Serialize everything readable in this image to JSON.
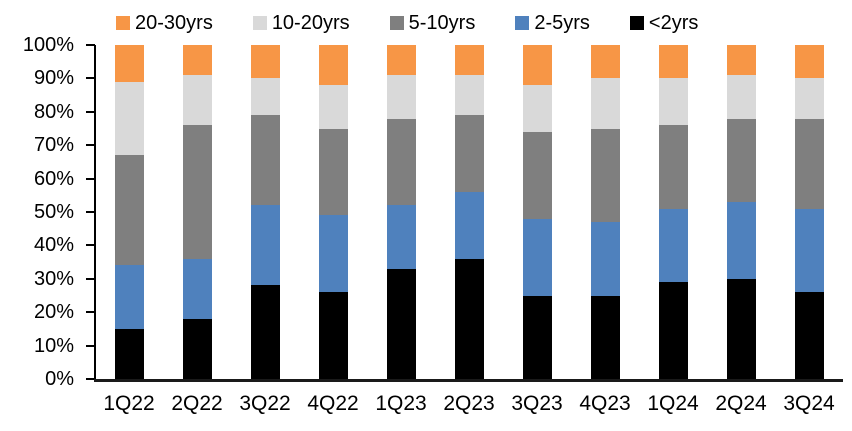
{
  "chart_data": {
    "type": "bar",
    "variant": "stacked-100",
    "title": "",
    "xlabel": "",
    "ylabel": "",
    "unit": "%",
    "grid": false,
    "legend_position": "top",
    "ylim": [
      0,
      100
    ],
    "ytick_step": 10,
    "ytick_labels": [
      "0%",
      "10%",
      "20%",
      "30%",
      "40%",
      "50%",
      "60%",
      "70%",
      "80%",
      "90%",
      "100%"
    ],
    "categories": [
      "1Q22",
      "2Q22",
      "3Q22",
      "4Q22",
      "1Q23",
      "2Q23",
      "3Q23",
      "4Q23",
      "1Q24",
      "2Q24",
      "3Q24"
    ],
    "series": [
      {
        "name": "<2yrs",
        "color": "#000000",
        "values": [
          15,
          18,
          28,
          26,
          33,
          36,
          25,
          25,
          29,
          30,
          26
        ]
      },
      {
        "name": "2-5yrs",
        "color": "#4F81BD",
        "values": [
          19,
          18,
          24,
          23,
          19,
          20,
          23,
          22,
          22,
          23,
          25
        ]
      },
      {
        "name": "5-10yrs",
        "color": "#7F7F7F",
        "values": [
          33,
          40,
          27,
          26,
          26,
          23,
          26,
          28,
          25,
          25,
          27
        ]
      },
      {
        "name": "10-20yrs",
        "color": "#D9D9D9",
        "values": [
          22,
          15,
          11,
          13,
          13,
          12,
          14,
          15,
          14,
          13,
          12
        ]
      },
      {
        "name": "20-30yrs",
        "color": "#F79646",
        "values": [
          11,
          9,
          10,
          12,
          9,
          9,
          12,
          10,
          10,
          9,
          10
        ]
      }
    ],
    "legend_order": [
      "20-30yrs",
      "10-20yrs",
      "5-10yrs",
      "2-5yrs",
      "<2yrs"
    ],
    "axis_color": "#000000",
    "baseline_color": "#1a1a1a"
  }
}
